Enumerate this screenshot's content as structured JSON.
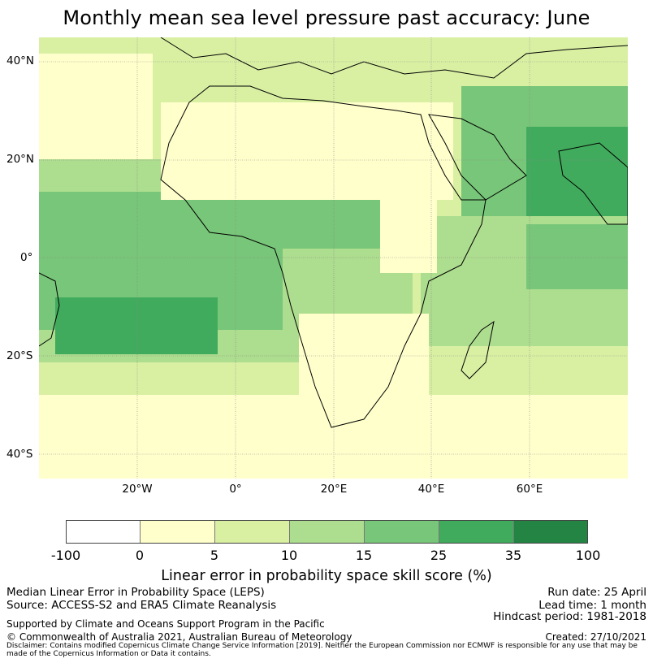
{
  "title": "Monthly mean sea level pressure past accuracy: June",
  "map": {
    "lat_labels": [
      "40°N",
      "20°N",
      "0°",
      "20°S",
      "40°S"
    ],
    "lon_labels": [
      "20°W",
      "0°",
      "20°E",
      "40°E",
      "60°E"
    ],
    "lat_values": [
      40,
      20,
      0,
      -20,
      -40
    ],
    "lon_values": [
      -20,
      0,
      20,
      40,
      60
    ],
    "lon_range": [
      -40,
      80
    ],
    "lat_range": [
      -45,
      45
    ]
  },
  "colorbar": {
    "ticks": [
      "-100",
      "0",
      "5",
      "10",
      "15",
      "25",
      "35",
      "100"
    ],
    "colors": [
      "#ffffff",
      "#ffffcc",
      "#d9f0a3",
      "#addd8e",
      "#78c679",
      "#41ab5d",
      "#238443"
    ],
    "label": "Linear error in probability space skill score (%)"
  },
  "footer": {
    "line1": "Median Linear Error in Probability Space (LEPS)",
    "line2": "Source: ACCESS-S2 and ERA5 Climate Reanalysis",
    "run_date": "Run date: 25 April",
    "lead_time": "Lead time: 1 month",
    "hindcast": "Hindcast period: 1981-2018",
    "supported": "Supported by Climate and Oceans Support Program in the Pacific",
    "copyright": "© Commonwealth of Australia 2021, Australian Bureau of Meteorology",
    "created": "Created: 27/10/2021",
    "disclaimer": "Disclaimer: Contains modified Copernicus Climate Change Service Information [2019]. Neither the European Commission nor ECMWF is responsible for any use that may be made of the Copernicus Information or Data it contains."
  }
}
